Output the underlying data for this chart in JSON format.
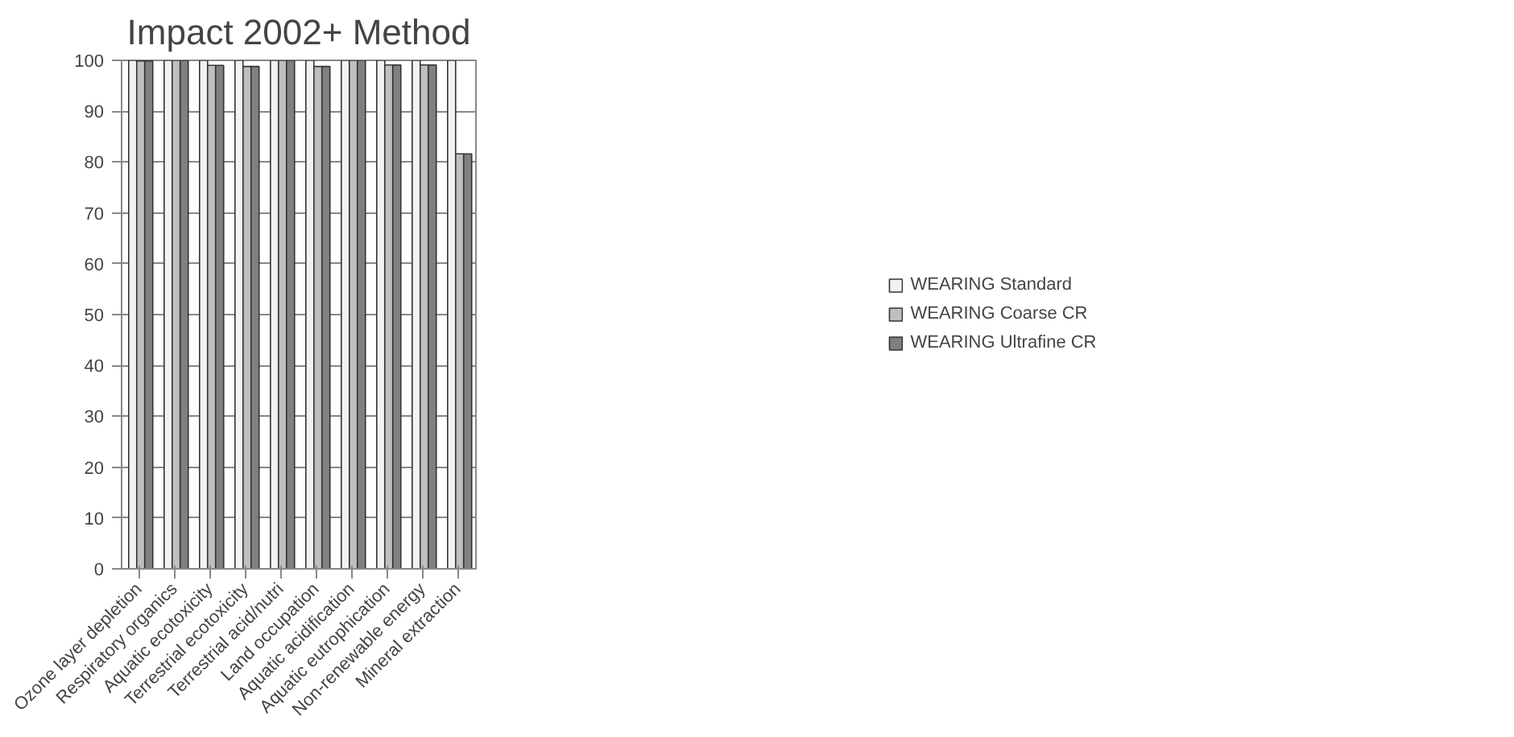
{
  "chart_data": {
    "type": "bar",
    "title": "Impact 2002+ Method",
    "categories": [
      "Ozone layer depletion",
      "Respiratory organics",
      "Aquatic ecotoxicity",
      "Terrestrial ecotoxicity",
      "Terrestrial acid/nutri",
      "Land occupation",
      "Aquatic acidification",
      "Aquatic eutrophication",
      "Non-renewable energy",
      "Mineral extraction"
    ],
    "series": [
      {
        "name": "WEARING Standard",
        "color": "#f2f2f2",
        "values": [
          100,
          100,
          100,
          100,
          100,
          100,
          100,
          100,
          100,
          100
        ]
      },
      {
        "name": "WEARING Coarse CR",
        "color": "#bfbfbf",
        "values": [
          99.9,
          100,
          99.0,
          98.8,
          100,
          98.8,
          100,
          99.1,
          99.1,
          81.6
        ]
      },
      {
        "name": "WEARING Ultrafine CR",
        "color": "#808080",
        "values": [
          99.9,
          100,
          99.0,
          98.8,
          100,
          98.8,
          100,
          99.1,
          99.1,
          81.6
        ]
      }
    ],
    "ylim": [
      0,
      100
    ],
    "yticks": [
      0,
      10,
      20,
      30,
      40,
      50,
      60,
      70,
      80,
      90,
      100
    ],
    "grid": "y",
    "legend": "right"
  }
}
